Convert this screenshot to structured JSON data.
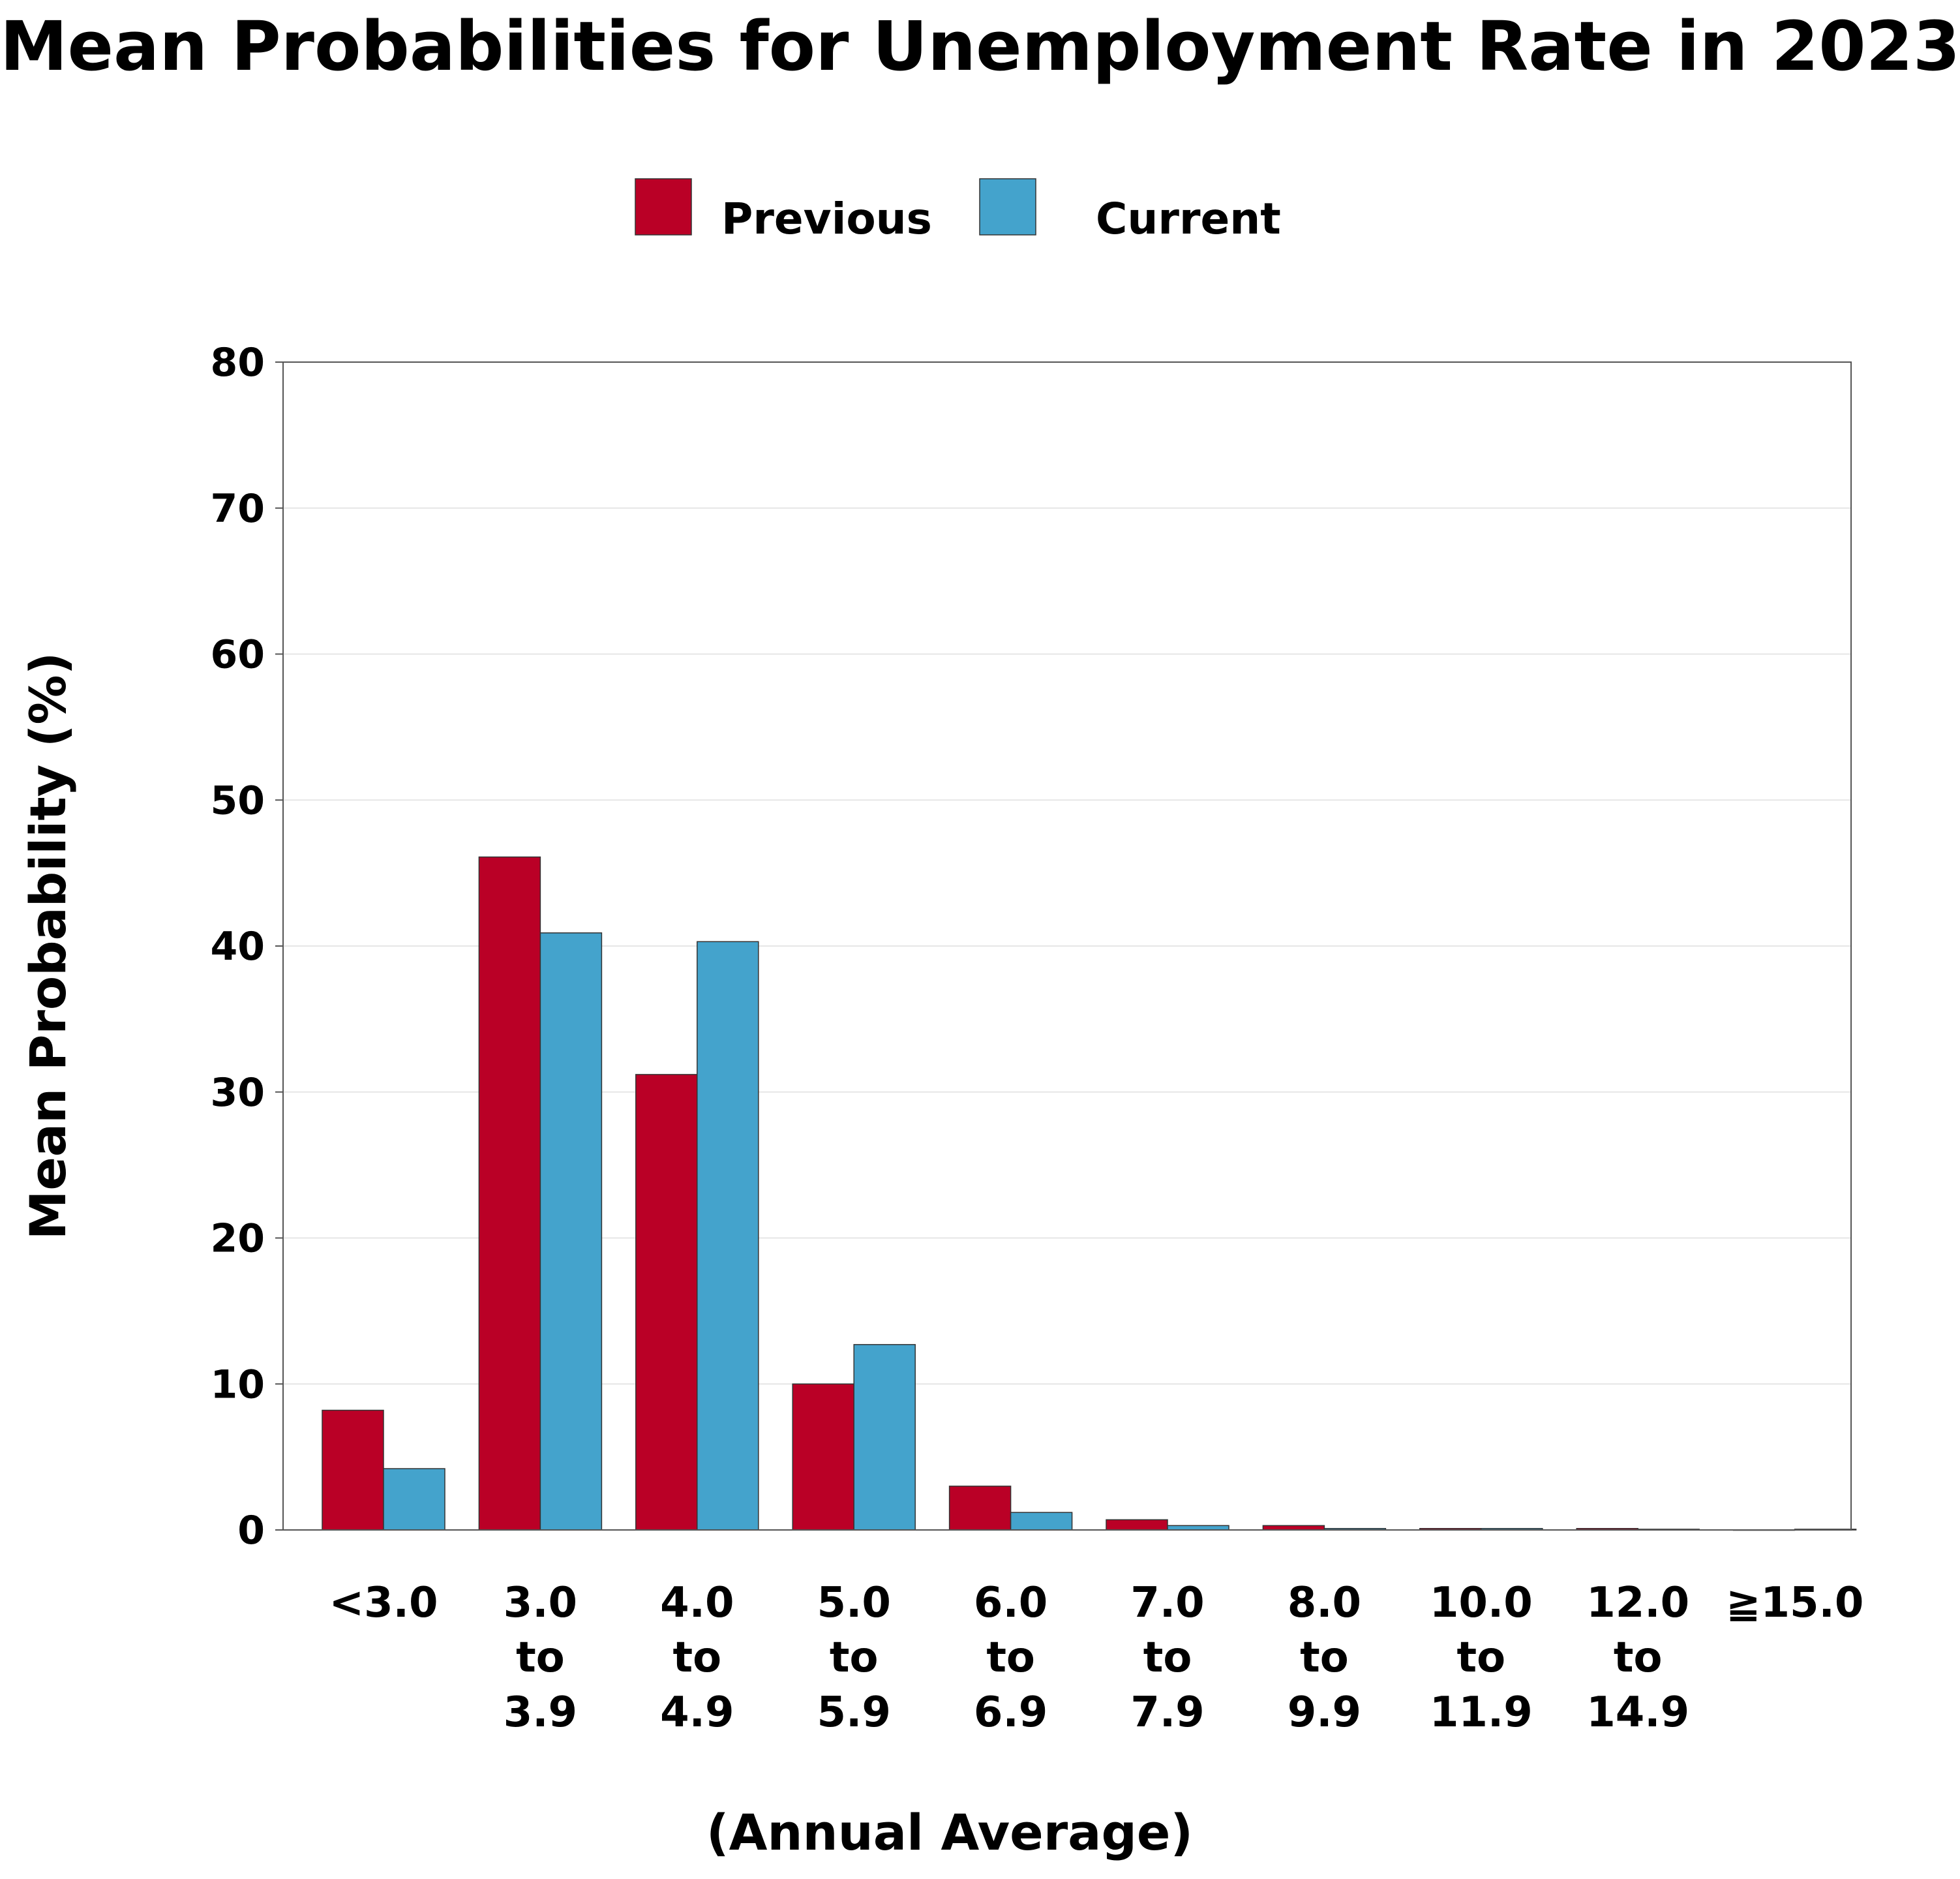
{
  "chart_data": {
    "type": "bar",
    "title": "Mean Probabilities for Unemployment Rate in 2023",
    "ylabel": "Mean Probability (%)",
    "xlabel": "(Annual Average)",
    "ylim": [
      0,
      80
    ],
    "yticks": [
      0,
      10,
      20,
      30,
      40,
      50,
      60,
      70,
      80
    ],
    "grid": true,
    "legend_position": "top-center",
    "categories": [
      [
        "<3.0"
      ],
      [
        "3.0",
        "to",
        "3.9"
      ],
      [
        "4.0",
        "to",
        "4.9"
      ],
      [
        "5.0",
        "to",
        "5.9"
      ],
      [
        "6.0",
        "to",
        "6.9"
      ],
      [
        "7.0",
        "to",
        "7.9"
      ],
      [
        "8.0",
        "to",
        "9.9"
      ],
      [
        "10.0",
        "to",
        "11.9"
      ],
      [
        "12.0",
        "to",
        "14.9"
      ],
      [
        "≧15.0"
      ]
    ],
    "series": [
      {
        "name": "Previous",
        "color": "#BA0026",
        "values": [
          8.2,
          46.1,
          31.2,
          10.0,
          3.0,
          0.7,
          0.3,
          0.1,
          0.1,
          0.0
        ]
      },
      {
        "name": "Current",
        "color": "#44A3CC",
        "values": [
          4.2,
          40.9,
          40.3,
          12.7,
          1.2,
          0.3,
          0.1,
          0.1,
          0.05,
          0.05
        ]
      }
    ]
  }
}
